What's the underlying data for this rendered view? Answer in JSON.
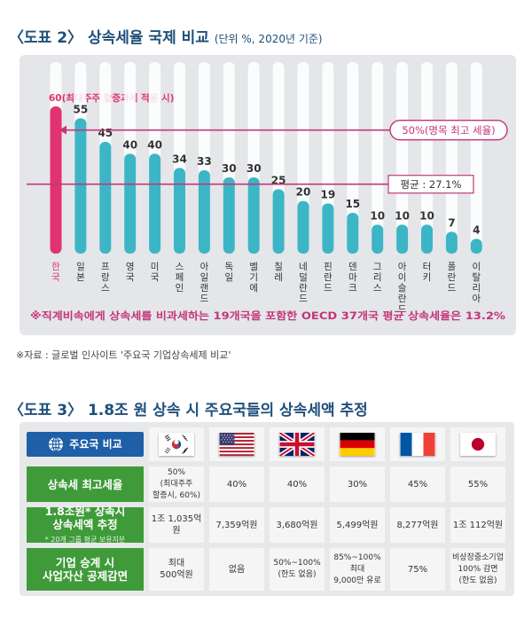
{
  "chart_section": {
    "title": "〈도표 2〉 상속세율 국제 비교",
    "subtitle": "(단위 %, 2020년 기준)",
    "source": "※자료 : 글로벌 인사이트 '주요국 기업상속세제 비교'"
  },
  "chart_data": {
    "type": "bar",
    "categories": [
      "한국",
      "일본",
      "프랑스",
      "영국",
      "미국",
      "스페인",
      "아일랜드",
      "독일",
      "벨기에",
      "칠레",
      "네덜란드",
      "핀란드",
      "덴마크",
      "그리스",
      "아이슬란드",
      "터키",
      "폴란드",
      "이탈리아"
    ],
    "values": [
      60,
      55,
      45,
      40,
      40,
      34,
      33,
      30,
      30,
      25,
      20,
      19,
      15,
      10,
      10,
      10,
      7,
      4
    ],
    "value_labels": [
      "60(최대주주 할증과세 적용 시)",
      "55",
      "45",
      "40",
      "40",
      "34",
      "33",
      "30",
      "30",
      "25",
      "20",
      "19",
      "15",
      "10",
      "10",
      "10",
      "7",
      "4"
    ],
    "ylim": [
      0,
      60
    ],
    "highlight_index": 0,
    "reference_lines": [
      {
        "label": "50%(명목 최고 세율)",
        "value": 50
      },
      {
        "label": "평균 : 27.1%",
        "value": 27.1
      }
    ],
    "footnote": "※직계비속에게 상속세를 비과세하는 19개국을 포함한 OECD 37개국 평균 상속세율은 13.2%",
    "colors": {
      "highlight": "#e0336f",
      "bar": "#3cb6c6",
      "reference": "#c4357a",
      "background": "#e4e6e9",
      "track": "#ffffff"
    }
  },
  "table_section": {
    "title": "〈도표 3〉 1.8조 원 상속 시 주요국들의 상속세액 추정",
    "header_label": "주요국 비교",
    "countries": [
      {
        "icon": "korea-flag-icon"
      },
      {
        "icon": "usa-flag-icon"
      },
      {
        "icon": "uk-flag-icon"
      },
      {
        "icon": "germany-flag-icon"
      },
      {
        "icon": "france-flag-icon"
      },
      {
        "icon": "japan-flag-icon"
      }
    ],
    "rows": [
      {
        "label": "상속세 최고세율",
        "note": "",
        "values": [
          "50%\n(최대주주\n할증시, 60%)",
          "40%",
          "40%",
          "30%",
          "45%",
          "55%"
        ]
      },
      {
        "label": "1.8조원* 상속시\n상속세액 추정",
        "note": "* 20개 그룹 평균 보유지분",
        "values": [
          "1조 1,035억원",
          "7,359억원",
          "3,680억원",
          "5,499억원",
          "8,277억원",
          "1조 112억원"
        ]
      },
      {
        "label": "기업 승계 시\n사업자산 공제감면",
        "note": "",
        "values": [
          "최대\n500억원",
          "없음",
          "50%~100%\n(한도 없음)",
          "85%~100%\n최대\n9,000만 유로",
          "75%",
          "비상장중소기업\n100% 감면\n(한도 없음)"
        ]
      }
    ],
    "colors": {
      "header": "#1e5fa8",
      "row_label": "#3f9b3a",
      "cell": "#f5f5f5"
    }
  }
}
